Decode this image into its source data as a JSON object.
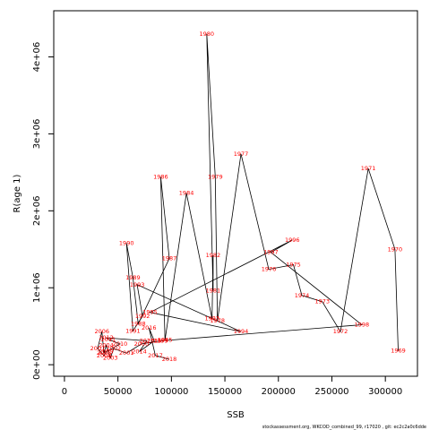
{
  "chart_data": {
    "type": "line",
    "xlabel": "SSB",
    "ylabel": "R(age 1)",
    "xlim": [
      -10000,
      330000
    ],
    "ylim": [
      -150000,
      4600000
    ],
    "xticks": [
      0,
      50000,
      100000,
      150000,
      200000,
      250000,
      300000
    ],
    "xtick_labels": [
      "0",
      "50000",
      "100000",
      "150000",
      "200000",
      "250000",
      "300000"
    ],
    "yticks": [
      0,
      1000000,
      2000000,
      3000000,
      4000000
    ],
    "ytick_labels": [
      "0e+00",
      "1e+06",
      "2e+06",
      "3e+06",
      "4e+06"
    ],
    "line_color": "#000000",
    "label_color": "#ff0000",
    "footnote": "stockassessment.org, WKCOD_combined_99, r17020 , git: ec2c2a0c6dde",
    "points": [
      {
        "year": "1969",
        "x": 312000,
        "y": 180000
      },
      {
        "year": "1970",
        "x": 309000,
        "y": 1500000
      },
      {
        "year": "1971",
        "x": 284000,
        "y": 2550000
      },
      {
        "year": "1972",
        "x": 258000,
        "y": 430000
      },
      {
        "year": "1973",
        "x": 241000,
        "y": 820000
      },
      {
        "year": "1974",
        "x": 222000,
        "y": 900000
      },
      {
        "year": "1975",
        "x": 214000,
        "y": 1300000
      },
      {
        "year": "1976",
        "x": 191000,
        "y": 1240000
      },
      {
        "year": "1977",
        "x": 165000,
        "y": 2740000
      },
      {
        "year": "1978",
        "x": 143000,
        "y": 570000
      },
      {
        "year": "1979",
        "x": 141000,
        "y": 2440000
      },
      {
        "year": "1980",
        "x": 133000,
        "y": 4300000
      },
      {
        "year": "1981",
        "x": 139000,
        "y": 960000
      },
      {
        "year": "1982",
        "x": 139000,
        "y": 1420000
      },
      {
        "year": "1983",
        "x": 138000,
        "y": 600000
      },
      {
        "year": "1984",
        "x": 114000,
        "y": 2230000
      },
      {
        "year": "1985",
        "x": 94000,
        "y": 320000
      },
      {
        "year": "1986",
        "x": 90000,
        "y": 2440000
      },
      {
        "year": "1987",
        "x": 98000,
        "y": 1380000
      },
      {
        "year": "1988",
        "x": 69000,
        "y": 530000
      },
      {
        "year": "1989",
        "x": 64000,
        "y": 1130000
      },
      {
        "year": "1990",
        "x": 58000,
        "y": 1580000
      },
      {
        "year": "1991",
        "x": 64000,
        "y": 440000
      },
      {
        "year": "1992",
        "x": 73000,
        "y": 630000
      },
      {
        "year": "1993",
        "x": 68000,
        "y": 1040000
      },
      {
        "year": "1994",
        "x": 165000,
        "y": 430000
      },
      {
        "year": "1995",
        "x": 80000,
        "y": 680000
      },
      {
        "year": "1996",
        "x": 213000,
        "y": 1620000
      },
      {
        "year": "1997",
        "x": 193000,
        "y": 1460000
      },
      {
        "year": "1998",
        "x": 278000,
        "y": 520000
      },
      {
        "year": "1999",
        "x": 90000,
        "y": 310000
      },
      {
        "year": "2000",
        "x": 72000,
        "y": 270000
      },
      {
        "year": "2001",
        "x": 58000,
        "y": 150000
      },
      {
        "year": "2002",
        "x": 46000,
        "y": 210000
      },
      {
        "year": "2003",
        "x": 43000,
        "y": 90000
      },
      {
        "year": "2004",
        "x": 39000,
        "y": 250000
      },
      {
        "year": "2005",
        "x": 37000,
        "y": 150000
      },
      {
        "year": "2006",
        "x": 35000,
        "y": 430000
      },
      {
        "year": "2007",
        "x": 31000,
        "y": 210000
      },
      {
        "year": "2008",
        "x": 37000,
        "y": 120000
      },
      {
        "year": "2009",
        "x": 39000,
        "y": 170000
      },
      {
        "year": "2010",
        "x": 52000,
        "y": 270000
      },
      {
        "year": "2011",
        "x": 41000,
        "y": 330000
      },
      {
        "year": "2012",
        "x": 39000,
        "y": 350000
      },
      {
        "year": "2013",
        "x": 77000,
        "y": 310000
      },
      {
        "year": "2014",
        "x": 70000,
        "y": 170000
      },
      {
        "year": "2015",
        "x": 84000,
        "y": 310000
      },
      {
        "year": "2016",
        "x": 79000,
        "y": 480000
      },
      {
        "year": "2017",
        "x": 85000,
        "y": 120000
      },
      {
        "year": "2018",
        "x": 98000,
        "y": 70000
      }
    ]
  }
}
